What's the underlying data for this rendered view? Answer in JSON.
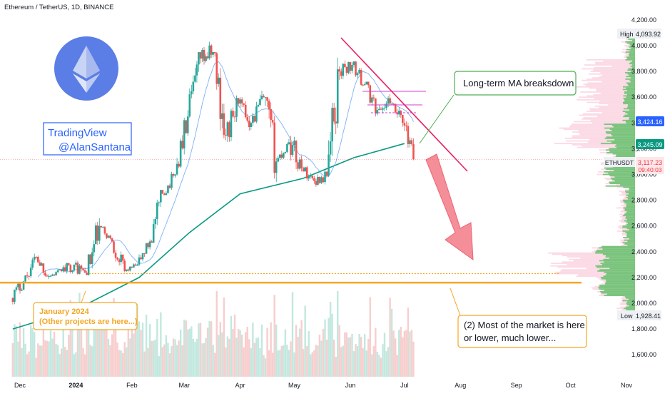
{
  "header": {
    "title": "Ethereum / TetherUS, 1D, BINANCE"
  },
  "watermark": {
    "line1": "TradingView",
    "line2": "@AlanSantana"
  },
  "annotations": {
    "ma_breakdown": "Long-term MA breaksdown",
    "market_note": "(2) Most of the market is here or lower, much lower...",
    "january_line1": "January 2024",
    "january_line2": "(Other projects are here...)"
  },
  "price_badges": {
    "high_label": "High",
    "high_value": "4,093.92",
    "level_blue": "3,424.16",
    "level_green": "3,245.09",
    "symbol": "ETHUSDT",
    "last_price": "3,117.23",
    "countdown": "09:40:03",
    "low_label": "Low",
    "low_value": "1,928.41"
  },
  "colors": {
    "up": "#26a69a",
    "down": "#ef5350",
    "ma_long": "#089981",
    "ma_short": "#5b9cf6",
    "orange": "#f5a623",
    "trend_red": "#e91e63",
    "arrow": "#f06272",
    "blue_badge": "#2962ff"
  },
  "chart_data": {
    "type": "candlestick",
    "symbol": "Ethereum / TetherUS",
    "interval": "1D",
    "exchange": "BINANCE",
    "x_tick_labels": [
      "Dec",
      "2024",
      "Feb",
      "Mar",
      "Apr",
      "May",
      "Jun",
      "Jul",
      "Aug",
      "Sep",
      "Oct",
      "Nov"
    ],
    "y_tick_labels": [
      "1,600.00",
      "1,800.00",
      "2,000.00",
      "2,200.00",
      "2,400.00",
      "2,600.00",
      "2,800.00",
      "3,000.00",
      "3,200.00",
      "3,400.00",
      "3,600.00",
      "3,800.00",
      "4,000.00",
      "4,200.00"
    ],
    "ylim": [
      1500,
      4300
    ],
    "ohlc_weekly_approx": [
      {
        "week": "2023-11-27",
        "open": 2040,
        "high": 2200,
        "low": 1990,
        "close": 2170
      },
      {
        "week": "2023-12-04",
        "open": 2170,
        "high": 2400,
        "low": 2160,
        "close": 2360
      },
      {
        "week": "2023-12-11",
        "open": 2360,
        "high": 2370,
        "low": 2150,
        "close": 2210
      },
      {
        "week": "2023-12-18",
        "open": 2210,
        "high": 2280,
        "low": 2180,
        "close": 2250
      },
      {
        "week": "2023-12-25",
        "open": 2250,
        "high": 2420,
        "low": 2230,
        "close": 2300
      },
      {
        "week": "2024-01-01",
        "open": 2300,
        "high": 2380,
        "low": 2120,
        "close": 2220
      },
      {
        "week": "2024-01-08",
        "open": 2220,
        "high": 2720,
        "low": 2200,
        "close": 2600
      },
      {
        "week": "2024-01-15",
        "open": 2600,
        "high": 2600,
        "low": 2450,
        "close": 2480
      },
      {
        "week": "2024-01-22",
        "open": 2480,
        "high": 2490,
        "low": 2180,
        "close": 2250
      },
      {
        "week": "2024-01-29",
        "open": 2250,
        "high": 2320,
        "low": 2240,
        "close": 2300
      },
      {
        "week": "2024-02-05",
        "open": 2300,
        "high": 2500,
        "low": 2280,
        "close": 2480
      },
      {
        "week": "2024-02-12",
        "open": 2480,
        "high": 2880,
        "low": 2470,
        "close": 2850
      },
      {
        "week": "2024-02-19",
        "open": 2850,
        "high": 3050,
        "low": 2840,
        "close": 3000
      },
      {
        "week": "2024-02-26",
        "open": 3000,
        "high": 3500,
        "low": 2990,
        "close": 3450
      },
      {
        "week": "2024-03-04",
        "open": 3450,
        "high": 3950,
        "low": 3440,
        "close": 3900
      },
      {
        "week": "2024-03-11",
        "open": 3900,
        "high": 4093.92,
        "low": 3800,
        "close": 3950
      },
      {
        "week": "2024-03-18",
        "open": 3950,
        "high": 3950,
        "low": 3200,
        "close": 3300
      },
      {
        "week": "2024-03-25",
        "open": 3300,
        "high": 3700,
        "low": 3250,
        "close": 3550
      },
      {
        "week": "2024-04-01",
        "open": 3550,
        "high": 3600,
        "low": 3300,
        "close": 3400
      },
      {
        "week": "2024-04-08",
        "open": 3400,
        "high": 3700,
        "low": 3350,
        "close": 3600
      },
      {
        "week": "2024-04-15",
        "open": 3600,
        "high": 3600,
        "low": 2850,
        "close": 3100
      },
      {
        "week": "2024-04-22",
        "open": 3100,
        "high": 3300,
        "low": 3050,
        "close": 3250
      },
      {
        "week": "2024-04-29",
        "open": 3250,
        "high": 3300,
        "low": 2850,
        "close": 3050
      },
      {
        "week": "2024-05-06",
        "open": 3050,
        "high": 3100,
        "low": 2900,
        "close": 2950
      },
      {
        "week": "2024-05-13",
        "open": 2950,
        "high": 3050,
        "low": 2850,
        "close": 2990
      },
      {
        "week": "2024-05-20",
        "open": 2990,
        "high": 3950,
        "low": 2980,
        "close": 3800
      },
      {
        "week": "2024-05-27",
        "open": 3800,
        "high": 3950,
        "low": 3700,
        "close": 3850
      },
      {
        "week": "2024-06-03",
        "open": 3850,
        "high": 3880,
        "low": 3650,
        "close": 3700
      },
      {
        "week": "2024-06-10",
        "open": 3700,
        "high": 3720,
        "low": 3450,
        "close": 3500
      },
      {
        "week": "2024-06-17",
        "open": 3500,
        "high": 3650,
        "low": 3380,
        "close": 3550
      },
      {
        "week": "2024-06-24",
        "open": 3550,
        "high": 3550,
        "low": 3300,
        "close": 3400
      },
      {
        "week": "2024-07-01",
        "open": 3400,
        "high": 3480,
        "low": 3060,
        "close": 3117.23
      }
    ],
    "ma_long_approx": [
      {
        "x": "2023-11-27",
        "y": 1800
      },
      {
        "x": "2024-01-01",
        "y": 1950
      },
      {
        "x": "2024-02-05",
        "y": 2200
      },
      {
        "x": "2024-03-04",
        "y": 2550
      },
      {
        "x": "2024-04-01",
        "y": 2850
      },
      {
        "x": "2024-05-06",
        "y": 2970
      },
      {
        "x": "2024-06-03",
        "y": 3130
      },
      {
        "x": "2024-07-01",
        "y": 3240
      }
    ],
    "levels": {
      "high": 4093.92,
      "blue": 3424.16,
      "green": 3245.09,
      "last": 3117.23,
      "low": 1928.41
    },
    "orange_support": [
      2230,
      2160
    ]
  }
}
